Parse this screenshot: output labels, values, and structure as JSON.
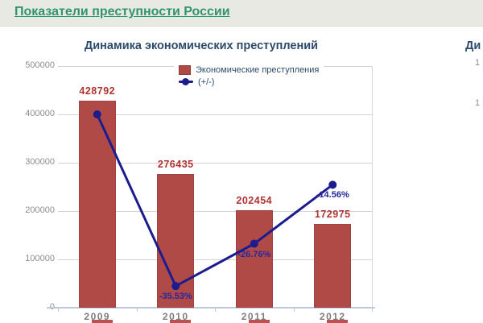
{
  "header": {
    "title": "Показатели преступности России"
  },
  "chart": {
    "title": "Динамика экономических преступлений",
    "legend": {
      "bars": "Экономические преступления",
      "line": "(+/-)"
    },
    "chart_data": {
      "type": "bar+line",
      "title": "Динамика экономических преступлений",
      "categories": [
        "2009",
        "2010",
        "2011",
        "2012"
      ],
      "series": [
        {
          "name": "Экономические преступления",
          "type": "bar",
          "color": "#b04a47",
          "axis": "left",
          "values": [
            428792,
            276435,
            202454,
            172975
          ],
          "value_labels": [
            "428792",
            "276435",
            "202454",
            "172975"
          ]
        },
        {
          "name": "(+/-)",
          "type": "line",
          "color": "#1c1c8f",
          "axis": "right_hidden_percent",
          "values": [
            0,
            -35.53,
            -26.76,
            -14.56
          ],
          "point_labels": [
            "",
            "-35.53%",
            "-26.76%",
            "-14.56%"
          ]
        }
      ],
      "left_axis": {
        "min": 0,
        "max": 500000,
        "tick_labels": [
          "500000",
          "400000",
          "300000",
          "200000",
          "100000",
          "0"
        ]
      },
      "right_axis": {
        "min": -40,
        "max": 10,
        "visible": false
      },
      "grid": true,
      "legend_position": "top-right-inside",
      "xlabel": "",
      "ylabel": ""
    }
  },
  "second_chart": {
    "title_fragment": "Ди",
    "tick_top": "1",
    "tick_bottom": "1"
  },
  "colors": {
    "bar": "#b04a47",
    "bar_border": "#8e3a37",
    "line": "#1c1c8f",
    "bar_value_label": "#b03331",
    "percent_label": "#2626a0",
    "chart_text": "#2d4a6b",
    "axis_text": "#8c8c8c",
    "header_title": "#2f9669",
    "header_bg": "#e9e9e4",
    "gridline": "#d2d2d2",
    "baseline": "#bccadb"
  }
}
